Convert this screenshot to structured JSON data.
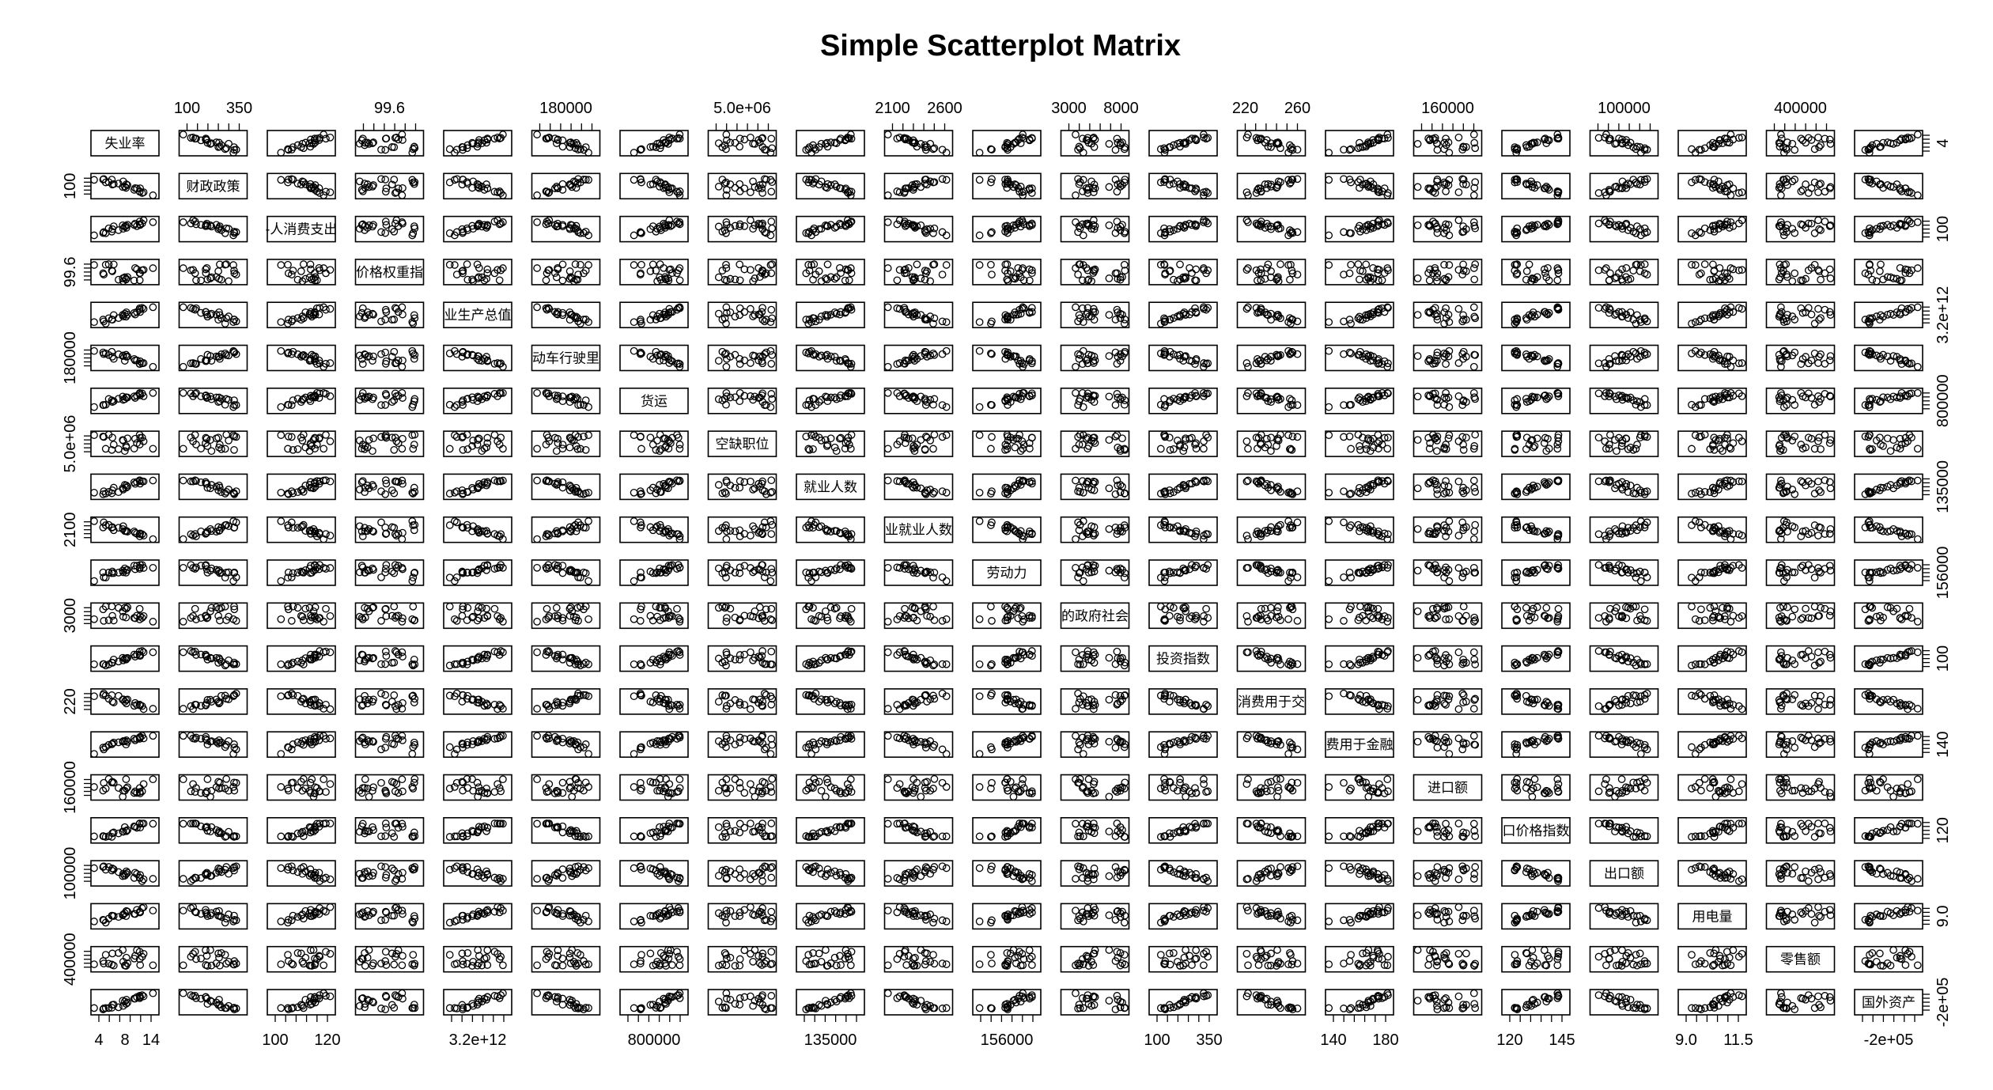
{
  "chart_data": {
    "type": "scatter",
    "title": "Simple Scatterplot Matrix",
    "variables": [
      "失业率",
      "财政政策",
      "个人消费支出",
      "价格权重指数",
      "工业生产总值",
      "机动车行驶里程",
      "货运",
      "空缺职位",
      "就业人数",
      "工业就业人数",
      "劳动力",
      "的政府社会福利",
      "投资指数",
      "消费用于交通",
      "消费用于金融",
      "进口额",
      "进口价格指数",
      "出口额",
      "用电量",
      "零售额",
      "国外资产"
    ],
    "variable_labels": [
      "失业率",
      "财政政策",
      "-人消费支出",
      "价格权重指",
      "业生产总值",
      "动车行驶里",
      "货运",
      "空缺职位",
      "就业人数",
      "业就业人数",
      "劳动力",
      "的政府社会",
      "投资指数",
      "消费用于交",
      "费用于金融",
      "进口额",
      "口价格指数",
      "出口额",
      "用电量",
      "零售额",
      "国外资产"
    ],
    "top_axis_ticks": [
      {
        "col": 1,
        "labels": [
          "100",
          "350"
        ]
      },
      {
        "col": 3,
        "labels": [
          "99.6"
        ]
      },
      {
        "col": 5,
        "labels": [
          "180000"
        ]
      },
      {
        "col": 7,
        "labels": [
          "5.0e+06"
        ]
      },
      {
        "col": 9,
        "labels": [
          "2100",
          "2600"
        ]
      },
      {
        "col": 11,
        "labels": [
          "3000",
          "8000"
        ]
      },
      {
        "col": 13,
        "labels": [
          "220",
          "260"
        ]
      },
      {
        "col": 15,
        "labels": [
          "160000"
        ]
      },
      {
        "col": 17,
        "labels": [
          "100000"
        ]
      },
      {
        "col": 19,
        "labels": [
          "400000"
        ]
      }
    ],
    "bottom_axis_ticks": [
      {
        "col": 0,
        "labels": [
          "4",
          "8",
          "14"
        ]
      },
      {
        "col": 2,
        "labels": [
          "100",
          "120"
        ]
      },
      {
        "col": 4,
        "labels": [
          "3.2e+12"
        ]
      },
      {
        "col": 6,
        "labels": [
          "800000"
        ]
      },
      {
        "col": 8,
        "labels": [
          "135000"
        ]
      },
      {
        "col": 10,
        "labels": [
          "156000"
        ]
      },
      {
        "col": 12,
        "labels": [
          "100",
          "350"
        ]
      },
      {
        "col": 14,
        "labels": [
          "140",
          "180"
        ]
      },
      {
        "col": 16,
        "labels": [
          "120",
          "145"
        ]
      },
      {
        "col": 18,
        "labels": [
          "9.0",
          "11.5"
        ]
      },
      {
        "col": 20,
        "labels": [
          "-2e+05"
        ]
      }
    ],
    "left_axis_ticks": [
      {
        "row": 1,
        "labels": [
          "100"
        ]
      },
      {
        "row": 3,
        "labels": [
          "99.6"
        ]
      },
      {
        "row": 5,
        "labels": [
          "180000"
        ]
      },
      {
        "row": 7,
        "labels": [
          "5.0e+06"
        ]
      },
      {
        "row": 9,
        "labels": [
          "2100"
        ]
      },
      {
        "row": 11,
        "labels": [
          "3000"
        ]
      },
      {
        "row": 13,
        "labels": [
          "220"
        ]
      },
      {
        "row": 15,
        "labels": [
          "160000"
        ]
      },
      {
        "row": 17,
        "labels": [
          "100000"
        ]
      },
      {
        "row": 19,
        "labels": [
          "400000"
        ]
      }
    ],
    "right_axis_ticks": [
      {
        "row": 0,
        "labels": [
          "4"
        ]
      },
      {
        "row": 2,
        "labels": [
          "100"
        ]
      },
      {
        "row": 4,
        "labels": [
          "3.2e+12"
        ]
      },
      {
        "row": 6,
        "labels": [
          "800000"
        ]
      },
      {
        "row": 8,
        "labels": [
          "135000"
        ]
      },
      {
        "row": 10,
        "labels": [
          "156000"
        ]
      },
      {
        "row": 12,
        "labels": [
          "100"
        ]
      },
      {
        "row": 14,
        "labels": [
          "140"
        ]
      },
      {
        "row": 16,
        "labels": [
          "120"
        ]
      },
      {
        "row": 18,
        "labels": [
          "9.0"
        ]
      },
      {
        "row": 20,
        "labels": [
          "-2e+05"
        ]
      }
    ],
    "n_observations": 24,
    "grid": false,
    "legend": "none",
    "point_style": "open-circle",
    "point_color": "#000000"
  }
}
